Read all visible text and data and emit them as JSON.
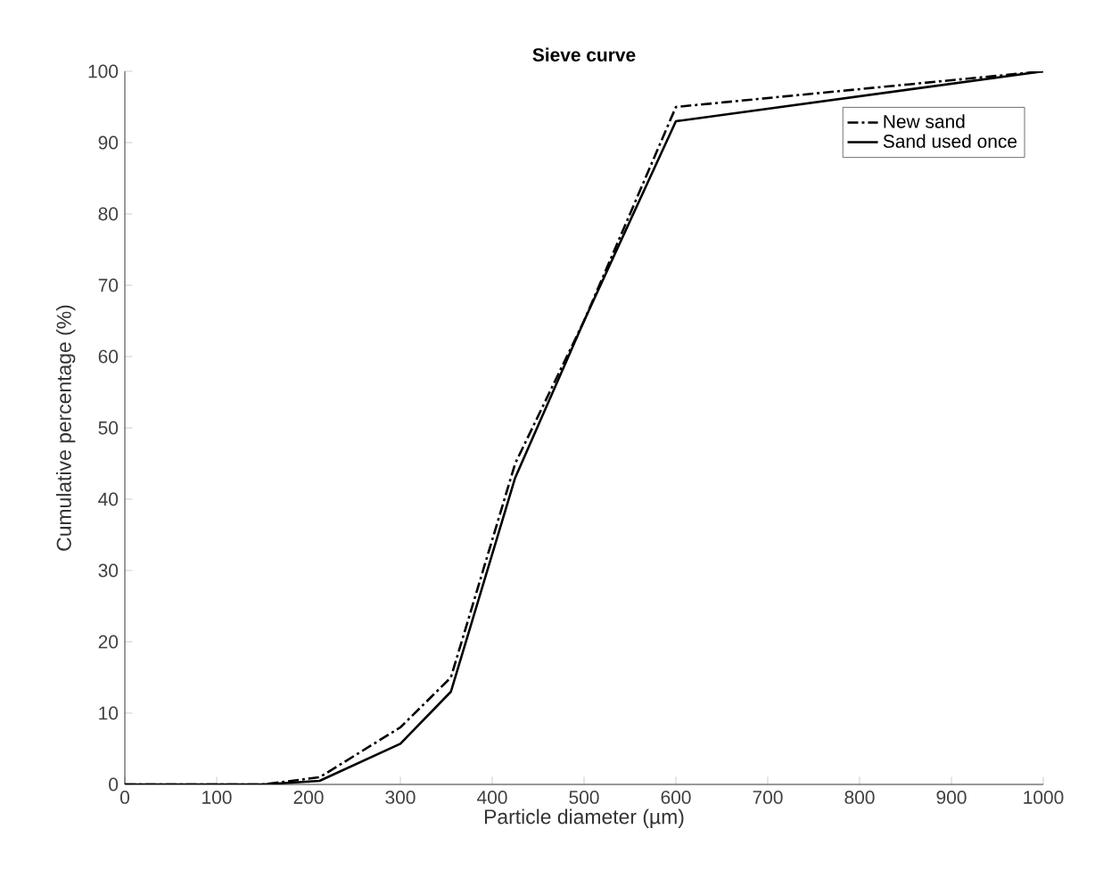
{
  "chart_data": {
    "type": "line",
    "title": "Sieve curve",
    "xlabel": "Particle diameter (µm)",
    "ylabel": "Cumulative percentage (%)",
    "xlim": [
      0,
      1000
    ],
    "ylim": [
      0,
      100
    ],
    "xticks": [
      0,
      100,
      200,
      300,
      400,
      500,
      600,
      700,
      800,
      900,
      1000
    ],
    "yticks": [
      0,
      10,
      20,
      30,
      40,
      50,
      60,
      70,
      80,
      90,
      100
    ],
    "legend": "top right",
    "grid": false,
    "marker": "none",
    "series": [
      {
        "name": "New sand",
        "color": "#000000",
        "line_style": "dashed",
        "x": [
          0,
          150,
          212,
          300,
          355,
          425,
          500,
          600,
          1000
        ],
        "values": [
          0,
          0,
          1,
          8,
          15,
          45,
          65,
          95,
          100
        ]
      },
      {
        "name": "Sand used once",
        "color": "#000000",
        "line_style": "solid",
        "x": [
          0,
          150,
          212,
          300,
          355,
          425,
          500,
          600,
          1000
        ],
        "values": [
          0,
          0,
          0.5,
          5.7,
          13,
          43,
          65,
          93,
          100
        ]
      }
    ]
  }
}
